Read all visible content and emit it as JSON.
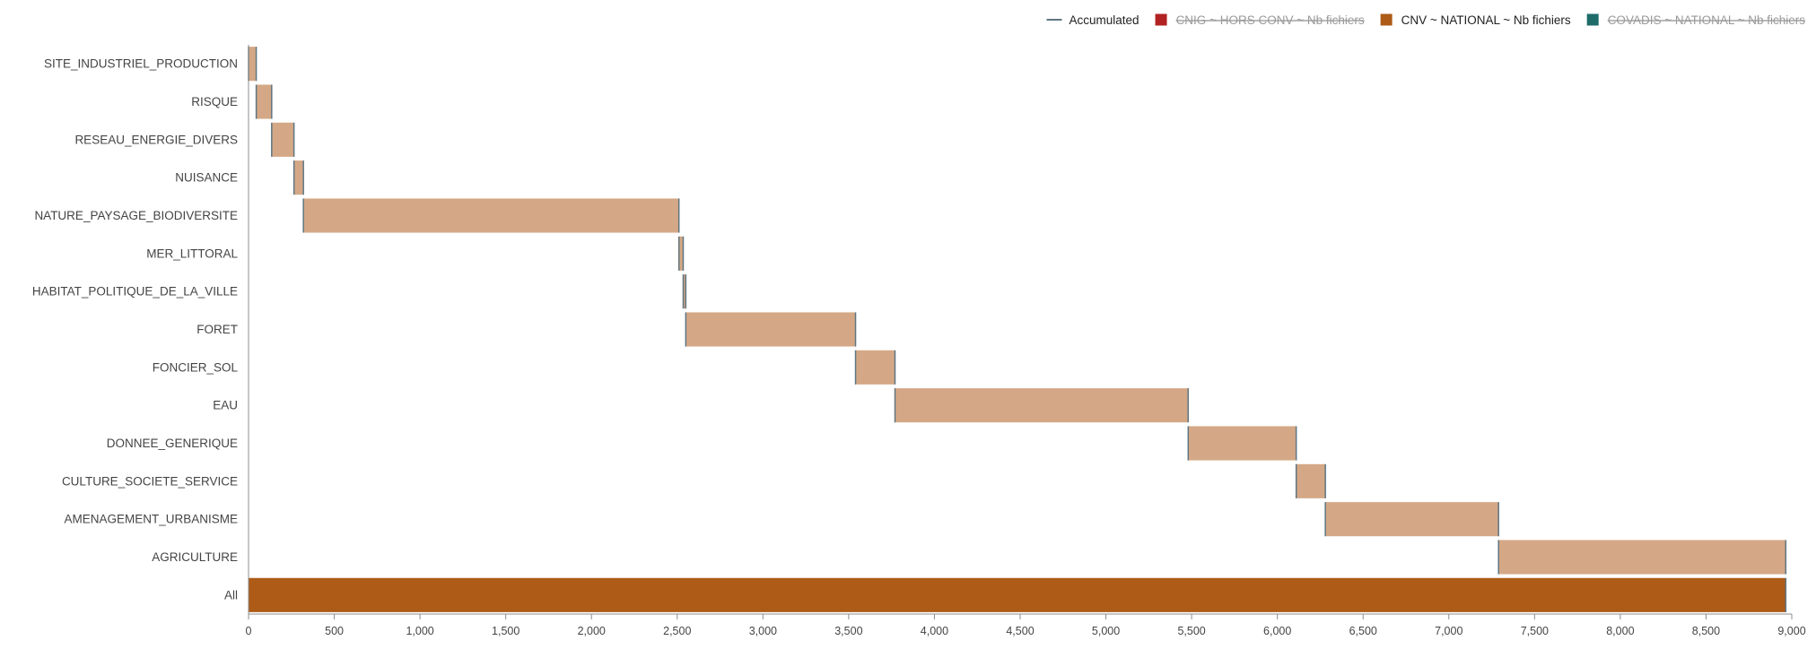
{
  "chart_data": {
    "type": "bar",
    "orientation": "horizontal",
    "subtype": "waterfall",
    "categories": [
      "SITE_INDUSTRIEL_PRODUCTION",
      "RISQUE",
      "RESEAU_ENERGIE_DIVERS",
      "NUISANCE",
      "NATURE_PAYSAGE_BIODIVERSITE",
      "MER_LITTORAL",
      "HABITAT_POLITIQUE_DE_LA_VILLE",
      "FORET",
      "FONCIER_SOL",
      "EAU",
      "DONNEE_GENERIQUE",
      "CULTURE_SOCIETE_SERVICE",
      "AMENAGEMENT_URBANISME",
      "AGRICULTURE",
      "All"
    ],
    "series": [
      {
        "name": "CNV ~ NATIONAL ~ Nb fichiers",
        "color": "#ad5b17",
        "step_color": "#d4a886",
        "values": [
          45,
          90,
          130,
          55,
          2190,
          25,
          15,
          990,
          230,
          1710,
          630,
          170,
          1010,
          1675,
          8965
        ]
      }
    ],
    "accumulated": [
      0,
      45,
      135,
      265,
      320,
      2510,
      2535,
      2550,
      3540,
      3770,
      5480,
      6110,
      6280,
      7290,
      8965
    ],
    "legend": [
      {
        "label": "Accumulated",
        "symbol": "line",
        "color": "#5f7682",
        "enabled": true
      },
      {
        "label": "CNIG ~ HORS CONV ~ Nb fichiers",
        "symbol": "square",
        "color": "#b22222",
        "enabled": false
      },
      {
        "label": "CNV ~ NATIONAL ~ Nb fichiers",
        "symbol": "square",
        "color": "#ad5b17",
        "enabled": true
      },
      {
        "label": "COVADIS ~ NATIONAL ~ Nb fichiers",
        "symbol": "square",
        "color": "#1e6b69",
        "enabled": false
      }
    ],
    "legend_position": "top-right",
    "xlim": [
      0,
      9000
    ],
    "x_ticks": [
      0,
      500,
      1000,
      1500,
      2000,
      2500,
      3000,
      3500,
      4000,
      4500,
      5000,
      5500,
      6000,
      6500,
      7000,
      7500,
      8000,
      8500,
      9000
    ],
    "x_tick_labels": [
      "0",
      "500",
      "1,000",
      "1,500",
      "2,000",
      "2,500",
      "3,000",
      "3,500",
      "4,000",
      "4,500",
      "5,000",
      "5,500",
      "6,000",
      "6,500",
      "7,000",
      "7,500",
      "8,000",
      "8,500",
      "9,000"
    ],
    "grid": false
  }
}
